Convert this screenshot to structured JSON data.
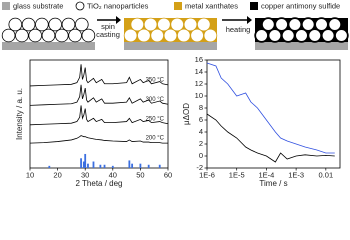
{
  "legend": [
    {
      "label": "glass substrate",
      "color": "#a6a6a6",
      "shape": "rect"
    },
    {
      "label": "TiO₂ nanoparticles",
      "color": "#ffffff",
      "shape": "circle"
    },
    {
      "label": "metal xanthates",
      "color": "#d4a017",
      "shape": "rect"
    },
    {
      "label": "copper antimony sulfide",
      "color": "#000000",
      "shape": "rect"
    }
  ],
  "process": {
    "steps": [
      "spin casting",
      "heating"
    ]
  },
  "chart_data": [
    {
      "type": "line",
      "xlabel": "2 Theta / deg",
      "ylabel": "Intensity / a. u.",
      "xlim": [
        10,
        60
      ],
      "xticks": [
        10,
        20,
        30,
        40,
        50,
        60
      ],
      "ylim": [
        0,
        10
      ],
      "x": [
        10,
        15,
        20,
        25,
        27,
        28,
        28.5,
        29,
        29.5,
        30,
        30.5,
        31,
        33,
        34,
        36,
        37,
        40,
        45,
        46,
        47,
        50,
        51,
        53,
        54,
        57,
        58,
        60
      ],
      "series": [
        {
          "name": "350 °C",
          "color": "#000000",
          "values": [
            7.6,
            7.65,
            7.7,
            7.75,
            7.9,
            8.4,
            9.6,
            8.2,
            8.6,
            9.3,
            8.1,
            7.9,
            8.3,
            7.9,
            8.2,
            7.8,
            7.8,
            7.9,
            8.4,
            7.8,
            8.2,
            7.9,
            8.1,
            7.8,
            8.0,
            7.8,
            7.7
          ]
        },
        {
          "name": "300 °C",
          "color": "#000000",
          "values": [
            5.8,
            5.85,
            5.9,
            5.95,
            6.1,
            6.6,
            7.7,
            6.4,
            6.8,
            7.4,
            6.3,
            6.1,
            6.5,
            6.1,
            6.4,
            6.0,
            6.0,
            6.1,
            6.5,
            6.0,
            6.4,
            6.1,
            6.3,
            6.0,
            6.2,
            6.0,
            5.9
          ]
        },
        {
          "name": "250 °C",
          "color": "#000000",
          "values": [
            4.0,
            4.05,
            4.1,
            4.15,
            4.3,
            4.7,
            5.8,
            4.6,
            4.9,
            5.5,
            4.5,
            4.3,
            4.6,
            4.3,
            4.5,
            4.2,
            4.2,
            4.3,
            4.6,
            4.2,
            4.5,
            4.3,
            4.4,
            4.2,
            4.3,
            4.2,
            4.1
          ]
        },
        {
          "name": "200 °C",
          "color": "#000000",
          "values": [
            2.3,
            2.35,
            2.45,
            2.6,
            2.75,
            2.9,
            3.0,
            2.95,
            2.9,
            2.9,
            2.85,
            2.8,
            2.7,
            2.65,
            2.6,
            2.55,
            2.5,
            2.45,
            2.6,
            2.45,
            2.5,
            2.4,
            2.4,
            2.35,
            2.35,
            2.3,
            2.3
          ]
        }
      ],
      "bars": {
        "color": "#3b6fe0",
        "x": [
          17,
          28.5,
          29.5,
          30,
          31,
          33,
          35.5,
          37,
          40,
          46,
          47,
          50,
          53,
          57
        ],
        "values": [
          0.2,
          0.9,
          0.6,
          1.3,
          0.4,
          0.6,
          0.3,
          0.3,
          0.2,
          0.7,
          0.4,
          0.4,
          0.3,
          0.3
        ]
      }
    },
    {
      "type": "line",
      "xscale": "log",
      "xlabel": "Time / s",
      "ylabel": "μΔOD",
      "xlim": [
        1e-06,
        0.03
      ],
      "xticks": [
        {
          "value": 1e-06,
          "label": "1E-6"
        },
        {
          "value": 1e-05,
          "label": "1E-5"
        },
        {
          "value": 0.0001,
          "label": "1E-4"
        },
        {
          "value": 0.001,
          "label": "1E-3"
        },
        0.01
      ],
      "ylim": [
        -2,
        16
      ],
      "yticks": [
        -2,
        0,
        2,
        4,
        6,
        8,
        10,
        12,
        14,
        16
      ],
      "x": [
        1e-06,
        2e-06,
        3e-06,
        5e-06,
        1e-05,
        2e-05,
        3e-05,
        5e-05,
        0.0001,
        0.0002,
        0.0003,
        0.0005,
        0.001,
        0.002,
        0.005,
        0.01,
        0.02
      ],
      "series": [
        {
          "color": "#3050e0",
          "values": [
            15.5,
            15,
            13,
            12,
            10,
            10.5,
            9,
            8,
            6,
            4,
            3,
            2.5,
            2,
            1.5,
            1,
            0.5,
            0.5
          ]
        },
        {
          "color": "#000000",
          "values": [
            7,
            6,
            5,
            4,
            3,
            1.5,
            1,
            0.5,
            0,
            -1,
            0.5,
            -0.5,
            0,
            0.2,
            0,
            0.1,
            0
          ]
        }
      ]
    }
  ]
}
